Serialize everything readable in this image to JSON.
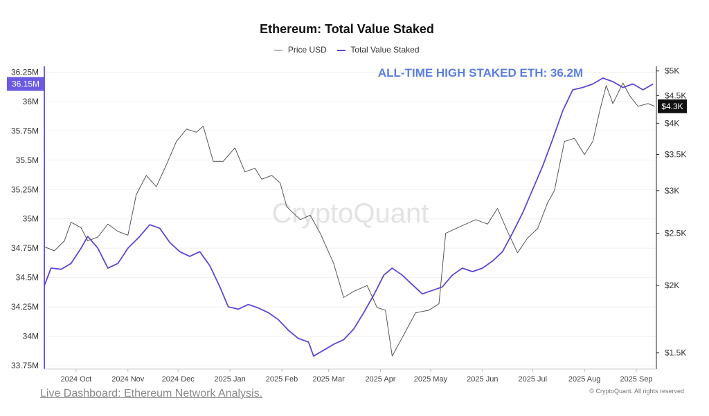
{
  "chart_data": {
    "type": "line",
    "title": "Ethereum: Total Value Staked",
    "legend": {
      "placement": "top-center",
      "items": [
        "Price USD",
        "Total Value Staked"
      ]
    },
    "annotation": "ALL-TIME HIGH STAKED ETH: 36.2M",
    "left_axis": {
      "ticks": [
        "36.25M",
        "36M",
        "35.75M",
        "35.5M",
        "35.25M",
        "35M",
        "34.75M",
        "34.5M",
        "34.25M",
        "34M",
        "33.75M"
      ],
      "tick_values": [
        36.25,
        36.0,
        35.75,
        35.5,
        35.25,
        35.0,
        34.75,
        34.5,
        34.25,
        34.0,
        33.75
      ],
      "range": [
        33.72,
        36.3
      ],
      "current_label": "36.15M",
      "current_value": 36.15
    },
    "right_axis": {
      "scale": "log",
      "ticks": [
        "$5K",
        "$4.5K",
        "$4K",
        "$3.5K",
        "$3K",
        "$2.5K",
        "$2K",
        "$1.5K"
      ],
      "tick_values": [
        5000,
        4500,
        4000,
        3500,
        3000,
        2500,
        2000,
        1500
      ],
      "range": [
        1400,
        5100
      ],
      "current_label": "$4.3K",
      "current_value": 4300
    },
    "x_axis": {
      "ticks": [
        "2024 Oct",
        "2024 Nov",
        "2024 Dec",
        "2025 Jan",
        "2025 Feb",
        "2025 Mar",
        "2025 Apr",
        "2025 May",
        "2025 Jun",
        "2025 Jul",
        "2025 Aug",
        "2025 Sep"
      ],
      "tick_dates": [
        "2024-10-01",
        "2024-11-01",
        "2024-12-01",
        "2025-01-01",
        "2025-02-01",
        "2025-03-01",
        "2025-04-01",
        "2025-05-01",
        "2025-06-01",
        "2025-07-01",
        "2025-08-01",
        "2025-09-01"
      ],
      "range": [
        "2024-09-12",
        "2025-09-13"
      ]
    },
    "grid": "horizontal",
    "series": [
      {
        "name": "Total Value Staked",
        "color": "#5b47d6",
        "axis": "left",
        "points": [
          [
            "2024-09-12",
            34.43
          ],
          [
            "2024-09-16",
            34.58
          ],
          [
            "2024-09-22",
            34.57
          ],
          [
            "2024-09-28",
            34.62
          ],
          [
            "2024-10-04",
            34.75
          ],
          [
            "2024-10-08",
            34.85
          ],
          [
            "2024-10-14",
            34.75
          ],
          [
            "2024-10-20",
            34.58
          ],
          [
            "2024-10-26",
            34.62
          ],
          [
            "2024-11-01",
            34.75
          ],
          [
            "2024-11-08",
            34.85
          ],
          [
            "2024-11-14",
            34.95
          ],
          [
            "2024-11-20",
            34.92
          ],
          [
            "2024-11-26",
            34.8
          ],
          [
            "2024-12-02",
            34.72
          ],
          [
            "2024-12-08",
            34.68
          ],
          [
            "2024-12-14",
            34.72
          ],
          [
            "2024-12-20",
            34.6
          ],
          [
            "2024-12-26",
            34.42
          ],
          [
            "2024-12-31",
            34.25
          ],
          [
            "2025-01-06",
            34.23
          ],
          [
            "2025-01-12",
            34.27
          ],
          [
            "2025-01-18",
            34.24
          ],
          [
            "2025-01-24",
            34.2
          ],
          [
            "2025-01-30",
            34.14
          ],
          [
            "2025-02-05",
            34.05
          ],
          [
            "2025-02-11",
            33.98
          ],
          [
            "2025-02-17",
            33.95
          ],
          [
            "2025-02-20",
            33.83
          ],
          [
            "2025-02-26",
            33.88
          ],
          [
            "2025-03-04",
            33.93
          ],
          [
            "2025-03-10",
            33.97
          ],
          [
            "2025-03-16",
            34.06
          ],
          [
            "2025-03-22",
            34.2
          ],
          [
            "2025-03-28",
            34.35
          ],
          [
            "2025-04-03",
            34.52
          ],
          [
            "2025-04-08",
            34.58
          ],
          [
            "2025-04-14",
            34.52
          ],
          [
            "2025-04-20",
            34.44
          ],
          [
            "2025-04-26",
            34.36
          ],
          [
            "2025-05-02",
            34.39
          ],
          [
            "2025-05-08",
            34.42
          ],
          [
            "2025-05-14",
            34.52
          ],
          [
            "2025-05-20",
            34.58
          ],
          [
            "2025-05-26",
            34.55
          ],
          [
            "2025-06-01",
            34.58
          ],
          [
            "2025-06-07",
            34.64
          ],
          [
            "2025-06-13",
            34.72
          ],
          [
            "2025-06-19",
            34.88
          ],
          [
            "2025-06-25",
            35.05
          ],
          [
            "2025-07-01",
            35.25
          ],
          [
            "2025-07-07",
            35.45
          ],
          [
            "2025-07-13",
            35.68
          ],
          [
            "2025-07-19",
            35.92
          ],
          [
            "2025-07-25",
            36.1
          ],
          [
            "2025-07-31",
            36.12
          ],
          [
            "2025-08-06",
            36.15
          ],
          [
            "2025-08-12",
            36.2
          ],
          [
            "2025-08-18",
            36.17
          ],
          [
            "2025-08-24",
            36.12
          ],
          [
            "2025-08-30",
            36.15
          ],
          [
            "2025-09-05",
            36.1
          ],
          [
            "2025-09-11",
            36.15
          ]
        ]
      },
      {
        "name": "Price USD",
        "color": "#555555",
        "axis": "right",
        "points": [
          [
            "2024-09-12",
            2360
          ],
          [
            "2024-09-18",
            2320
          ],
          [
            "2024-09-24",
            2420
          ],
          [
            "2024-09-28",
            2620
          ],
          [
            "2024-10-04",
            2560
          ],
          [
            "2024-10-08",
            2420
          ],
          [
            "2024-10-14",
            2460
          ],
          [
            "2024-10-20",
            2600
          ],
          [
            "2024-10-26",
            2520
          ],
          [
            "2024-11-01",
            2480
          ],
          [
            "2024-11-06",
            2950
          ],
          [
            "2024-11-12",
            3200
          ],
          [
            "2024-11-18",
            3050
          ],
          [
            "2024-11-24",
            3350
          ],
          [
            "2024-11-30",
            3700
          ],
          [
            "2024-12-06",
            3900
          ],
          [
            "2024-12-12",
            3850
          ],
          [
            "2024-12-16",
            3950
          ],
          [
            "2024-12-22",
            3400
          ],
          [
            "2024-12-28",
            3400
          ],
          [
            "2025-01-04",
            3600
          ],
          [
            "2025-01-10",
            3250
          ],
          [
            "2025-01-16",
            3300
          ],
          [
            "2025-01-20",
            3150
          ],
          [
            "2025-01-26",
            3200
          ],
          [
            "2025-01-31",
            3100
          ],
          [
            "2025-02-04",
            2800
          ],
          [
            "2025-02-12",
            2650
          ],
          [
            "2025-02-18",
            2700
          ],
          [
            "2025-02-24",
            2500
          ],
          [
            "2025-03-04",
            2200
          ],
          [
            "2025-03-10",
            1900
          ],
          [
            "2025-03-16",
            1950
          ],
          [
            "2025-03-24",
            2000
          ],
          [
            "2025-03-30",
            1820
          ],
          [
            "2025-04-04",
            1800
          ],
          [
            "2025-04-08",
            1480
          ],
          [
            "2025-04-14",
            1600
          ],
          [
            "2025-04-22",
            1780
          ],
          [
            "2025-04-30",
            1800
          ],
          [
            "2025-05-06",
            1850
          ],
          [
            "2025-05-10",
            2500
          ],
          [
            "2025-05-16",
            2550
          ],
          [
            "2025-05-22",
            2600
          ],
          [
            "2025-05-28",
            2650
          ],
          [
            "2025-06-04",
            2600
          ],
          [
            "2025-06-10",
            2780
          ],
          [
            "2025-06-16",
            2520
          ],
          [
            "2025-06-22",
            2300
          ],
          [
            "2025-06-28",
            2450
          ],
          [
            "2025-07-04",
            2550
          ],
          [
            "2025-07-10",
            2850
          ],
          [
            "2025-07-14",
            3000
          ],
          [
            "2025-07-20",
            3700
          ],
          [
            "2025-07-26",
            3750
          ],
          [
            "2025-08-01",
            3500
          ],
          [
            "2025-08-06",
            3700
          ],
          [
            "2025-08-10",
            4200
          ],
          [
            "2025-08-14",
            4700
          ],
          [
            "2025-08-18",
            4350
          ],
          [
            "2025-08-24",
            4750
          ],
          [
            "2025-08-28",
            4500
          ],
          [
            "2025-09-02",
            4300
          ],
          [
            "2025-09-08",
            4350
          ],
          [
            "2025-09-12",
            4300
          ]
        ]
      }
    ]
  },
  "footer": {
    "link_text": "Live Dashboard: Ethereum Network Analysis.",
    "copyright": "© CryptoQuant. All rights reserved"
  },
  "watermark": "CryptoQuant",
  "colors": {
    "staked_line": "#5b47d6",
    "price_line": "#555555",
    "annotation": "#5b7fe0",
    "left_badge": "#6b5be3"
  }
}
